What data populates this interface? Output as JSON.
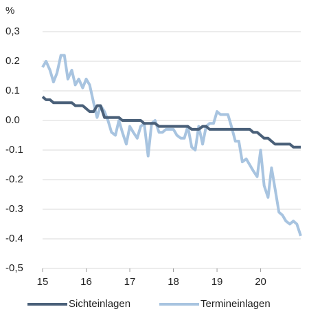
{
  "chart_data": {
    "type": "line",
    "y_label": "%",
    "x": [
      15,
      15.08,
      15.17,
      15.25,
      15.33,
      15.42,
      15.5,
      15.58,
      15.67,
      15.75,
      15.83,
      15.92,
      16,
      16.08,
      16.17,
      16.25,
      16.33,
      16.42,
      16.5,
      16.58,
      16.67,
      16.75,
      16.83,
      16.92,
      17,
      17.08,
      17.17,
      17.25,
      17.33,
      17.42,
      17.5,
      17.58,
      17.67,
      17.75,
      17.83,
      17.92,
      18,
      18.08,
      18.17,
      18.25,
      18.33,
      18.42,
      18.5,
      18.58,
      18.67,
      18.75,
      18.83,
      18.92,
      19,
      19.08,
      19.17,
      19.25,
      19.33,
      19.42,
      19.5,
      19.58,
      19.67,
      19.75,
      19.83,
      19.92,
      20,
      20.08,
      20.17,
      20.25,
      20.33,
      20.42,
      20.5,
      20.58,
      20.67,
      20.75,
      20.83,
      20.92
    ],
    "series": [
      {
        "name": "Sichteinlagen",
        "color": "#4a6079",
        "values": [
          0.08,
          0.07,
          0.07,
          0.06,
          0.06,
          0.06,
          0.06,
          0.06,
          0.06,
          0.05,
          0.05,
          0.05,
          0.04,
          0.03,
          0.03,
          0.05,
          0.05,
          0.01,
          0.01,
          0.01,
          0.01,
          0.01,
          0.0,
          0.0,
          0.0,
          0.0,
          0.0,
          0.0,
          -0.01,
          -0.01,
          -0.01,
          -0.01,
          -0.02,
          -0.02,
          -0.02,
          -0.02,
          -0.02,
          -0.02,
          -0.02,
          -0.02,
          -0.02,
          -0.03,
          -0.03,
          -0.03,
          -0.02,
          -0.02,
          -0.03,
          -0.03,
          -0.03,
          -0.03,
          -0.03,
          -0.03,
          -0.03,
          -0.03,
          -0.03,
          -0.03,
          -0.03,
          -0.03,
          -0.04,
          -0.04,
          -0.05,
          -0.06,
          -0.06,
          -0.07,
          -0.08,
          -0.08,
          -0.08,
          -0.08,
          -0.08,
          -0.09,
          -0.09,
          -0.09
        ]
      },
      {
        "name": "Termineinlagen",
        "color": "#a8c4e0",
        "values": [
          0.18,
          0.2,
          0.17,
          0.13,
          0.16,
          0.22,
          0.22,
          0.14,
          0.17,
          0.12,
          0.14,
          0.11,
          0.14,
          0.12,
          0.06,
          0.01,
          0.05,
          0.03,
          0.0,
          -0.04,
          -0.05,
          0.0,
          -0.04,
          -0.08,
          -0.02,
          -0.04,
          -0.06,
          -0.02,
          -0.01,
          -0.12,
          -0.01,
          0.0,
          -0.04,
          -0.04,
          -0.03,
          -0.03,
          -0.03,
          -0.05,
          -0.06,
          -0.06,
          -0.02,
          -0.09,
          -0.1,
          -0.02,
          -0.08,
          -0.02,
          -0.01,
          -0.01,
          0.03,
          0.02,
          0.02,
          0.02,
          -0.02,
          -0.07,
          -0.07,
          -0.14,
          -0.13,
          -0.15,
          -0.17,
          -0.19,
          -0.1,
          -0.22,
          -0.26,
          -0.16,
          -0.23,
          -0.31,
          -0.32,
          -0.34,
          -0.35,
          -0.34,
          -0.35,
          -0.39
        ]
      }
    ],
    "xlim": [
      15,
      20.92
    ],
    "xticks": [
      15,
      16,
      17,
      18,
      19,
      20
    ],
    "ylim": [
      -0.5,
      0.3
    ],
    "yticks": [
      {
        "value": 0.3,
        "label": "0,3"
      },
      0.2,
      0.1,
      {
        "value": 0,
        "label": "0.0"
      },
      -0.1,
      -0.2,
      -0.3,
      -0.4,
      {
        "value": -0.5,
        "label": "-0,5"
      }
    ],
    "grid": true,
    "legend": "bottom"
  }
}
